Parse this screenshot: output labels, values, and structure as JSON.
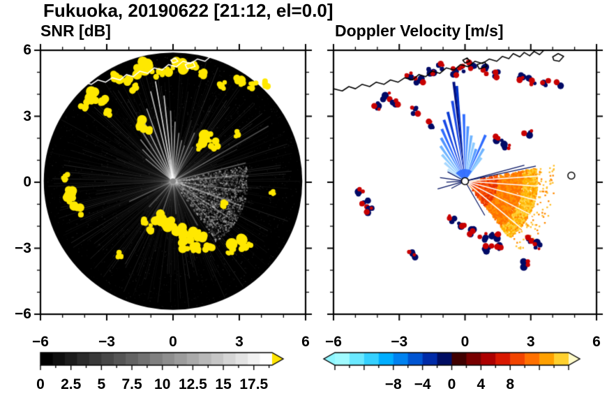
{
  "title": "Fukuoka, 20190622 [21:12, el=0.0]",
  "panels": {
    "snr": {
      "title": "SNR [dB]"
    },
    "velocity": {
      "title": "Doppler Velocity [m/s]"
    }
  },
  "chart_data": [
    {
      "type": "heatmap",
      "subtype": "radar-ppi-scan",
      "title": "SNR [dB]",
      "xlim": [
        -6,
        6
      ],
      "ylim": [
        -6,
        6
      ],
      "xtick_values": [
        -6,
        -3,
        0,
        3,
        6
      ],
      "xtick_labels": [
        "−6",
        "−3",
        "0",
        "3",
        "6"
      ],
      "ytick_values": [
        6,
        3,
        0,
        -3,
        -6
      ],
      "ytick_labels": [
        "6",
        "3",
        "0",
        "−3",
        "−6"
      ],
      "minor_tick_interval": 1,
      "grid": false,
      "scan_disk": {
        "center": [
          0,
          0.05
        ],
        "radius": 5.85,
        "background_color": "#000000"
      },
      "echo_color": "#ffe800",
      "coastline_color": "#ffffff",
      "colorbar": {
        "position": "bottom",
        "range": [
          0,
          19
        ],
        "tick_values": [
          0,
          2.5,
          5,
          7.5,
          10,
          12.5,
          15,
          17.5
        ],
        "tick_labels": [
          "0",
          "2.5",
          "5",
          "7.5",
          "10",
          "12.5",
          "15",
          "17.5"
        ],
        "colormap": "black-to-white grayscale",
        "over_arrow_color": "#ffe400"
      },
      "bright_beams": [
        [
          100,
          4.6,
          0.85
        ],
        [
          104,
          4.2,
          0.7
        ],
        [
          96,
          3.9,
          0.8
        ],
        [
          92,
          3.2,
          0.6
        ],
        [
          88,
          2.7,
          0.6
        ],
        [
          83,
          2.2,
          0.5
        ],
        [
          78,
          1.9,
          0.45
        ],
        [
          72,
          1.7,
          0.4
        ],
        [
          66,
          2.4,
          0.4
        ],
        [
          60,
          1.8,
          0.35
        ],
        [
          110,
          3.5,
          0.6
        ],
        [
          116,
          3.0,
          0.6
        ],
        [
          122,
          2.7,
          0.5
        ],
        [
          128,
          2.4,
          0.5
        ],
        [
          134,
          2.0,
          0.45
        ],
        [
          141,
          1.6,
          0.4
        ],
        [
          30,
          5.0,
          0.3
        ],
        [
          14,
          3.4,
          0.35
        ],
        [
          5,
          3.0,
          0.4
        ],
        [
          -8,
          3.2,
          0.4
        ],
        [
          -20,
          3.3,
          0.45
        ],
        [
          -33,
          3.0,
          0.4
        ],
        [
          -46,
          2.8,
          0.35
        ],
        [
          205,
          2.2,
          0.3
        ],
        [
          227,
          1.6,
          0.25
        ],
        [
          251,
          1.9,
          0.28
        ],
        [
          275,
          1.5,
          0.22
        ],
        [
          299,
          2.3,
          0.28
        ],
        [
          323,
          2.0,
          0.3
        ],
        [
          341,
          2.8,
          0.32
        ]
      ],
      "low_snr_fan": {
        "start_deg": -55,
        "end_deg": 12,
        "radius": 3.4
      },
      "high_snr_echoes": [
        [
          -2.6,
          4.8,
          0.28
        ],
        [
          -2.1,
          4.55,
          0.22
        ],
        [
          -1.6,
          5.0,
          0.25
        ],
        [
          -1.15,
          5.25,
          0.3
        ],
        [
          -0.6,
          4.95,
          0.2
        ],
        [
          -0.2,
          5.1,
          0.24
        ],
        [
          0.3,
          5.3,
          0.3
        ],
        [
          0.9,
          5.15,
          0.25
        ],
        [
          1.4,
          4.9,
          0.2
        ],
        [
          2.2,
          4.4,
          0.18
        ],
        [
          3.0,
          4.6,
          0.22
        ],
        [
          3.6,
          4.4,
          0.2
        ],
        [
          4.2,
          4.5,
          0.18
        ],
        [
          -3.6,
          3.9,
          0.28
        ],
        [
          -3.2,
          3.6,
          0.24
        ],
        [
          -4.0,
          3.5,
          0.2
        ],
        [
          -2.9,
          3.1,
          0.18
        ],
        [
          -1.8,
          4.3,
          0.18
        ],
        [
          -1.5,
          2.6,
          0.28
        ],
        [
          -1.2,
          2.3,
          0.18
        ],
        [
          1.5,
          2.0,
          0.3
        ],
        [
          1.85,
          1.7,
          0.22
        ],
        [
          1.2,
          1.6,
          0.16
        ],
        [
          2.85,
          2.2,
          0.16
        ],
        [
          -4.75,
          -0.45,
          0.28
        ],
        [
          -4.55,
          -0.95,
          0.3
        ],
        [
          -4.3,
          -1.3,
          0.22
        ],
        [
          -4.85,
          0.25,
          0.16
        ],
        [
          -0.6,
          -1.65,
          0.26
        ],
        [
          -0.2,
          -1.95,
          0.3
        ],
        [
          0.3,
          -2.25,
          0.28
        ],
        [
          0.8,
          -2.5,
          0.3
        ],
        [
          1.3,
          -2.45,
          0.26
        ],
        [
          0.55,
          -2.85,
          0.22
        ],
        [
          1.05,
          -3.0,
          0.26
        ],
        [
          1.6,
          -2.95,
          0.22
        ],
        [
          -0.95,
          -2.1,
          0.2
        ],
        [
          -1.3,
          -1.8,
          0.16
        ],
        [
          2.9,
          -2.65,
          0.3
        ],
        [
          3.3,
          -2.85,
          0.26
        ],
        [
          2.6,
          -3.1,
          0.18
        ],
        [
          2.3,
          -1.0,
          0.14
        ],
        [
          4.5,
          -0.5,
          0.12
        ],
        [
          -2.4,
          -3.3,
          0.14
        ]
      ]
    },
    {
      "type": "heatmap",
      "subtype": "radar-ppi-scan",
      "title": "Doppler Velocity [m/s]",
      "xlim": [
        -6,
        6
      ],
      "ylim": [
        -6,
        6
      ],
      "xtick_values": [
        -6,
        -3,
        0,
        3,
        6
      ],
      "xtick_labels": [
        "−6",
        "−3",
        "0",
        "3",
        "6"
      ],
      "ytick_values": [
        6,
        3,
        0,
        -3,
        -6
      ],
      "ytick_labels": [],
      "minor_tick_interval": 1,
      "grid": false,
      "center": [
        0,
        0.05
      ],
      "coastline_color": "#000000",
      "colorbar": {
        "position": "bottom",
        "range": [
          -16,
          16
        ],
        "tick_values": [
          -8,
          -4,
          0,
          4,
          8
        ],
        "tick_labels": [
          "−8",
          "−4",
          "0",
          "4",
          "8"
        ],
        "segment_colors": [
          "#a0faff",
          "#6ae8ff",
          "#35d0ff",
          "#00aeff",
          "#0082f0",
          "#0055d2",
          "#002ba8",
          "#000d62",
          "#400000",
          "#780000",
          "#ad0000",
          "#d91800",
          "#f24400",
          "#ff7000",
          "#ffa000",
          "#ffd02e"
        ],
        "under_arrow_color": "#8ef6ff",
        "over_arrow_color": "#fffbc8"
      },
      "inbound_beams": [
        [
          95,
          4.35,
          1.6,
          "#0030c8"
        ],
        [
          96.5,
          4.55,
          0.7,
          "#001080"
        ],
        [
          99,
          3.7,
          1.4,
          "#1a49e6"
        ],
        [
          91,
          3.05,
          1.4,
          "#2f6cff"
        ],
        [
          87,
          2.5,
          1.6,
          "#4f93ff"
        ],
        [
          82,
          2.1,
          1.4,
          "#6fb4ff"
        ],
        [
          77,
          1.8,
          1.6,
          "#8fccff"
        ],
        [
          71,
          1.55,
          1.3,
          "#5aa0ff"
        ],
        [
          66,
          2.3,
          1.1,
          "#2f6cff"
        ],
        [
          60,
          1.7,
          1.0,
          "#6fb4ff"
        ],
        [
          55,
          1.3,
          0.9,
          "#8fccff"
        ],
        [
          104,
          3.25,
          1.7,
          "#0b3bd2"
        ],
        [
          109,
          2.95,
          1.7,
          "#1a49e6"
        ],
        [
          114,
          2.6,
          1.7,
          "#2f6cff"
        ],
        [
          119,
          2.25,
          1.7,
          "#4f93ff"
        ],
        [
          125,
          1.95,
          1.7,
          "#6fb4ff"
        ],
        [
          131,
          1.6,
          1.7,
          "#8fccff"
        ],
        [
          138,
          1.25,
          1.6,
          "#a8d8ff"
        ],
        [
          146,
          0.95,
          1.4,
          "#bfe4ff"
        ]
      ],
      "outbound_fan": {
        "start_deg": -52,
        "end_deg": 10,
        "radius": 3.3,
        "core_colors": [
          "#e63000",
          "#ff7000"
        ],
        "edge_colors": [
          "#ffb200",
          "#ffd23c"
        ]
      },
      "fan_gaps_deg": [
        -40,
        -27,
        -15,
        -4,
        4
      ],
      "dark_streaks": [
        [
          172,
          1.15
        ],
        [
          183,
          0.85
        ],
        [
          196,
          1.3
        ],
        [
          208,
          0.7
        ],
        [
          152,
          0.9
        ],
        [
          12,
          3.3
        ],
        [
          15,
          2.8
        ],
        [
          -60,
          1.8
        ]
      ],
      "clutter_points": [
        [
          -2.6,
          4.85
        ],
        [
          -2.1,
          4.6
        ],
        [
          -1.55,
          5.05
        ],
        [
          -1.1,
          5.25
        ],
        [
          -0.55,
          5.0
        ],
        [
          -0.15,
          5.15
        ],
        [
          0.35,
          5.3
        ],
        [
          0.9,
          5.1
        ],
        [
          1.45,
          4.9
        ],
        [
          2.5,
          4.75
        ],
        [
          3.05,
          4.6
        ],
        [
          3.65,
          4.45
        ],
        [
          4.25,
          4.5
        ],
        [
          -3.6,
          3.9
        ],
        [
          -3.2,
          3.6
        ],
        [
          -4.0,
          3.45
        ],
        [
          -2.25,
          3.25
        ],
        [
          -1.5,
          2.6
        ],
        [
          1.55,
          1.95
        ],
        [
          1.9,
          1.68
        ],
        [
          2.85,
          2.2
        ],
        [
          -4.75,
          -0.45
        ],
        [
          -4.55,
          -0.95
        ],
        [
          -4.3,
          -1.3
        ],
        [
          -0.55,
          -1.65
        ],
        [
          -0.15,
          -1.95
        ],
        [
          0.35,
          -2.25
        ],
        [
          0.85,
          -2.5
        ],
        [
          1.35,
          -2.45
        ],
        [
          1.05,
          -3.0
        ],
        [
          1.65,
          -2.95
        ],
        [
          2.95,
          -2.65
        ],
        [
          3.3,
          -2.85
        ],
        [
          2.75,
          -3.75
        ],
        [
          -2.4,
          -3.3
        ]
      ],
      "station_marker": [
        0,
        0.05
      ],
      "range_marker": [
        4.85,
        0.3
      ]
    }
  ],
  "map": {
    "coastline": [
      [
        -6.0,
        4.25
      ],
      [
        -5.6,
        4.15
      ],
      [
        -5.3,
        4.35
      ],
      [
        -5.0,
        4.25
      ],
      [
        -4.7,
        4.45
      ],
      [
        -4.35,
        4.35
      ],
      [
        -4.05,
        4.55
      ],
      [
        -3.7,
        4.45
      ],
      [
        -3.4,
        4.65
      ],
      [
        -3.05,
        4.55
      ],
      [
        -2.75,
        4.75
      ],
      [
        -2.4,
        4.65
      ],
      [
        -2.1,
        4.9
      ],
      [
        -1.8,
        4.8
      ],
      [
        -1.5,
        5.05
      ],
      [
        -1.15,
        4.95
      ],
      [
        -0.85,
        5.2
      ],
      [
        -0.5,
        5.1
      ],
      [
        -0.2,
        5.35
      ],
      [
        0.15,
        5.25
      ],
      [
        0.45,
        5.5
      ],
      [
        0.8,
        5.4
      ],
      [
        1.1,
        5.6
      ],
      [
        1.45,
        5.5
      ],
      [
        1.7,
        5.72
      ],
      [
        2.0,
        5.62
      ],
      [
        2.2,
        5.85
      ],
      [
        2.5,
        5.7
      ],
      [
        2.7,
        5.9
      ],
      [
        2.95,
        5.75
      ],
      [
        3.15,
        5.95
      ],
      [
        3.4,
        5.8
      ],
      [
        3.6,
        6.0
      ]
    ],
    "islets": [
      [
        [
          4.0,
          5.7
        ],
        [
          4.25,
          5.85
        ],
        [
          4.5,
          5.72
        ],
        [
          4.3,
          5.5
        ],
        [
          4.05,
          5.55
        ]
      ],
      [
        [
          0.55,
          5.35
        ],
        [
          0.9,
          5.47
        ],
        [
          1.0,
          5.27
        ],
        [
          0.65,
          5.15
        ]
      ],
      [
        [
          -0.1,
          5.55
        ],
        [
          0.1,
          5.65
        ],
        [
          0.22,
          5.5
        ],
        [
          0.0,
          5.42
        ]
      ]
    ]
  }
}
